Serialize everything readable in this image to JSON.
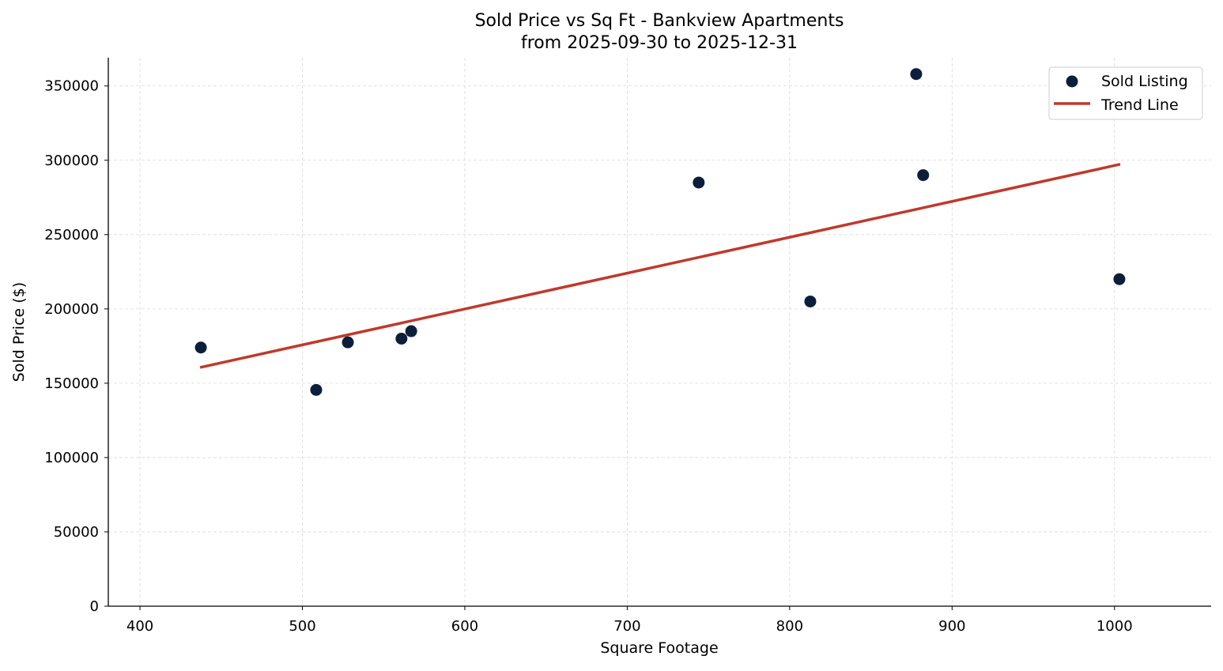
{
  "chart_data": {
    "type": "scatter",
    "title": "Sold Price vs Sq Ft - Bankview Apartments",
    "subtitle": "from 2025-09-30 to 2025-12-31",
    "xlabel": "Square Footage",
    "ylabel": "Sold Price ($)",
    "xlim": [
      380.5,
      1059.5
    ],
    "ylim": [
      0,
      369000
    ],
    "xticks": [
      400,
      500,
      600,
      700,
      800,
      900,
      1000
    ],
    "yticks": [
      0,
      50000,
      100000,
      150000,
      200000,
      250000,
      300000,
      350000
    ],
    "grid": true,
    "legend_position": "top-right",
    "series": [
      {
        "name": "Sold Listing",
        "type": "scatter",
        "color": "#0b1f3a",
        "x": [
          437.5,
          508.5,
          528,
          561,
          567,
          744,
          812.7,
          877.9,
          882.2,
          1003
        ],
        "y": [
          174000,
          145500,
          177500,
          180000,
          185000,
          285000,
          205000,
          358000,
          290000,
          220000
        ]
      },
      {
        "name": "Trend Line",
        "type": "line",
        "color": "#c0392b",
        "x": [
          437,
          1003.5
        ],
        "y": [
          160600,
          297300
        ]
      }
    ]
  }
}
